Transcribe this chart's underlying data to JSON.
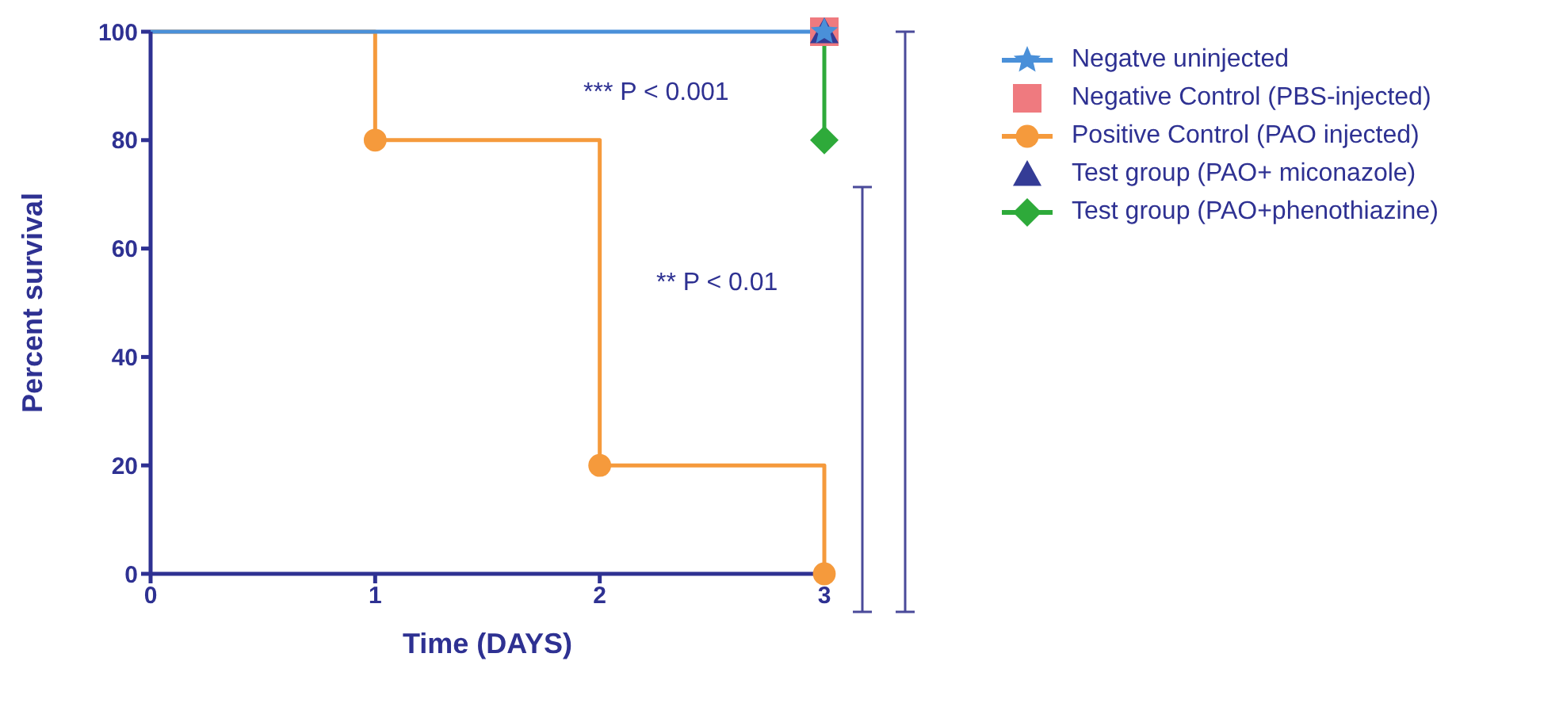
{
  "chart_data": {
    "type": "step",
    "xlabel": "Time (DAYS)",
    "ylabel": "Percent survival",
    "xlim": [
      0,
      3
    ],
    "xticks": [
      0,
      1,
      2,
      3
    ],
    "ylim": [
      0,
      100
    ],
    "yticks": [
      0,
      20,
      40,
      60,
      80,
      100
    ],
    "grid": false,
    "legend": "right",
    "series": [
      {
        "name": "Negatve uninjected",
        "color": "#4a90d9",
        "marker": "star",
        "x": [
          0,
          3
        ],
        "values": [
          100,
          100
        ]
      },
      {
        "name": "Negative Control (PBS-injected)",
        "type": "scatter",
        "color": "#ef7a7f",
        "marker": "square",
        "x": [
          3
        ],
        "values": [
          100
        ]
      },
      {
        "name": "Positive Control (PAO injected)",
        "color": "#f59a3c",
        "marker": "circle",
        "x": [
          0,
          1,
          2,
          3
        ],
        "values": [
          100,
          80,
          20,
          0
        ]
      },
      {
        "name": "Test group (PAO+ miconazole)",
        "type": "scatter",
        "color": "#343c96",
        "marker": "triangle",
        "x": [
          3
        ],
        "values": [
          100
        ]
      },
      {
        "name": "Test group (PAO+phenothiazine)",
        "color": "#2eaa3a",
        "marker": "diamond",
        "x": [
          3,
          3
        ],
        "values": [
          100,
          80
        ]
      }
    ],
    "annotations": [
      "*** P < 0.001",
      "** P < 0.01"
    ]
  }
}
